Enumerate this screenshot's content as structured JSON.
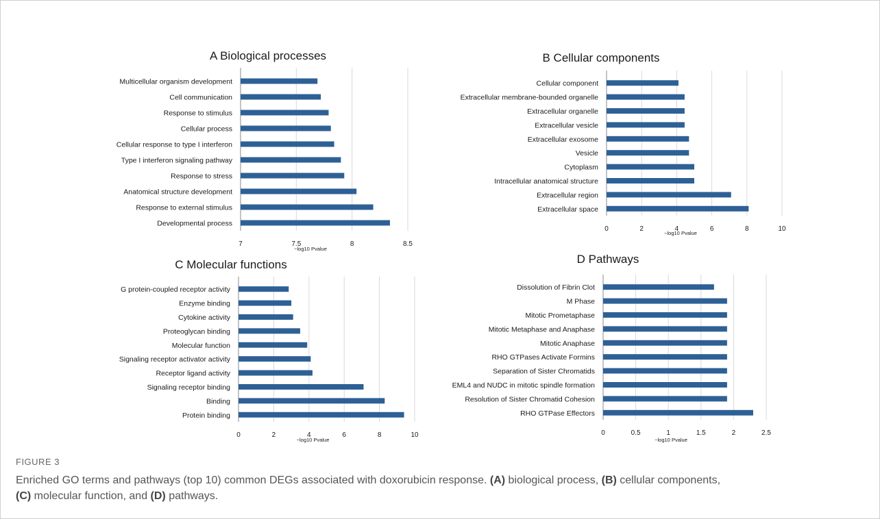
{
  "figure": {
    "label": "FIGURE 3",
    "caption": {
      "lead": "Enriched GO terms and pathways (top 10) common DEGs associated with doxorubicin response. ",
      "a_tag": "(A)",
      "a_text": " biological process, ",
      "b_tag": "(B)",
      "b_text": " cellular components, ",
      "c_tag": "(C)",
      "c_text": " molecular function, and ",
      "d_tag": "(D)",
      "d_text": " pathways."
    }
  },
  "colors": {
    "bar": "#2e6096",
    "grid": "#d9d9d9",
    "text": "#1a1a1a",
    "axis": "#888888"
  },
  "chart_data": [
    {
      "id": "A",
      "type": "bar",
      "orientation": "horizontal",
      "panel_letter": "A",
      "title": "Biological processes",
      "xlabel": "−log10 Pvalue",
      "xlim": [
        7,
        8.5
      ],
      "ticks": [
        7,
        7.5,
        8,
        8.5
      ],
      "tick_labels": [
        "7",
        "7.5",
        "8",
        "8.5"
      ],
      "grid": true,
      "categories": [
        "Multicellular organism development",
        "Cell communication",
        "Response to stimulus",
        "Cellular process",
        "Cellular response to type I interferon",
        "Type I interferon signaling pathway",
        "Response to stress",
        "Anatomical structure development",
        "Response to external stimulus",
        "Developmental process"
      ],
      "values": [
        7.69,
        7.72,
        7.79,
        7.81,
        7.84,
        7.9,
        7.93,
        8.04,
        8.19,
        8.34
      ]
    },
    {
      "id": "B",
      "type": "bar",
      "orientation": "horizontal",
      "panel_letter": "B",
      "title": "Cellular components",
      "xlabel": "−log10 Pvalue",
      "xlim": [
        0,
        10
      ],
      "ticks": [
        0,
        2,
        4,
        6,
        8,
        10
      ],
      "tick_labels": [
        "0",
        "2",
        "4",
        "6",
        "8",
        "10"
      ],
      "grid": true,
      "categories": [
        "Cellular component",
        "Extracellular membrane-bounded organelle",
        "Extracellular organelle",
        "Extracellular vesicle",
        "Extracellular exosome",
        "Vesicle",
        "Cytoplasm",
        "Intracellular anatomical structure",
        "Extracellular region",
        "Extracellular space"
      ],
      "values": [
        4.1,
        4.45,
        4.45,
        4.45,
        4.7,
        4.7,
        5.0,
        5.0,
        7.1,
        8.1
      ]
    },
    {
      "id": "C",
      "type": "bar",
      "orientation": "horizontal",
      "panel_letter": "C",
      "title": "Molecular functions",
      "xlabel": "−log10 Pvalue",
      "xlim": [
        0,
        10
      ],
      "ticks": [
        0,
        2,
        4,
        6,
        8,
        10
      ],
      "tick_labels": [
        "0",
        "2",
        "4",
        "6",
        "8",
        "10"
      ],
      "grid": true,
      "categories": [
        "G protein-coupled receptor activity",
        "Enzyme binding",
        "Cytokine activity",
        "Proteoglycan binding",
        "Molecular function",
        "Signaling receptor activator activity",
        "Receptor ligand activity",
        "Signaling receptor binding",
        "Binding",
        "Protein binding"
      ],
      "values": [
        2.85,
        3.0,
        3.1,
        3.5,
        3.9,
        4.1,
        4.2,
        7.1,
        8.3,
        9.4
      ]
    },
    {
      "id": "D",
      "type": "bar",
      "orientation": "horizontal",
      "panel_letter": "D",
      "title": "Pathways",
      "xlabel": "−log10 Pvalue",
      "xlim": [
        0,
        2.5
      ],
      "ticks": [
        0,
        0.5,
        1,
        1.5,
        2,
        2.5
      ],
      "tick_labels": [
        "0",
        "0.5",
        "1",
        "1.5",
        "2",
        "2.5"
      ],
      "grid": true,
      "categories": [
        "Dissolution of Fibrin Clot",
        "M Phase",
        "Mitotic Prometaphase",
        "Mitotic Metaphase and Anaphase",
        "Mitotic Anaphase",
        "RHO GTPases Activate Formins",
        "Separation of Sister Chromatids",
        "EML4 and NUDC in mitotic spindle formation",
        "Resolution of Sister Chromatid Cohesion",
        "RHO GTPase Effectors"
      ],
      "values": [
        1.7,
        1.9,
        1.9,
        1.9,
        1.9,
        1.9,
        1.9,
        1.9,
        1.9,
        2.3
      ]
    }
  ]
}
